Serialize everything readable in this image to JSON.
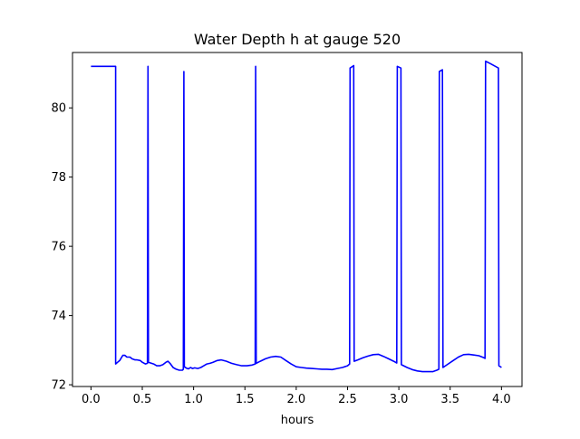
{
  "chart_data": {
    "type": "line",
    "title": "Water Depth h at gauge 520",
    "xlabel": "hours",
    "ylabel": "",
    "xlim": [
      -0.18,
      4.2
    ],
    "ylim": [
      71.95,
      81.6
    ],
    "xticks": [
      0.0,
      0.5,
      1.0,
      1.5,
      2.0,
      2.5,
      3.0,
      3.5,
      4.0
    ],
    "xtick_labels": [
      "0.0",
      "0.5",
      "1.0",
      "1.5",
      "2.0",
      "2.5",
      "3.0",
      "3.5",
      "4.0"
    ],
    "yticks": [
      72,
      74,
      76,
      78,
      80
    ],
    "ytick_labels": [
      "72",
      "74",
      "76",
      "78",
      "80"
    ],
    "grid": false,
    "legend": "none",
    "series": [
      {
        "color": "#0000ff",
        "x": [
          0.0,
          0.24,
          0.24,
          0.26,
          0.28,
          0.31,
          0.33,
          0.35,
          0.38,
          0.4,
          0.43,
          0.45,
          0.48,
          0.5,
          0.53,
          0.55,
          0.556,
          0.56,
          0.58,
          0.61,
          0.64,
          0.67,
          0.7,
          0.73,
          0.75,
          0.77,
          0.8,
          0.83,
          0.86,
          0.89,
          0.9,
          0.905,
          0.91,
          0.93,
          0.95,
          0.97,
          0.99,
          1.01,
          1.04,
          1.07,
          1.1,
          1.13,
          1.16,
          1.19,
          1.23,
          1.27,
          1.32,
          1.37,
          1.42,
          1.47,
          1.52,
          1.57,
          1.6,
          1.605,
          1.61,
          1.65,
          1.7,
          1.75,
          1.8,
          1.85,
          1.9,
          1.95,
          2.0,
          2.05,
          2.1,
          2.15,
          2.2,
          2.25,
          2.3,
          2.35,
          2.4,
          2.45,
          2.5,
          2.52,
          2.525,
          2.56,
          2.565,
          2.6,
          2.65,
          2.7,
          2.75,
          2.8,
          2.85,
          2.9,
          2.95,
          2.98,
          2.985,
          3.02,
          3.025,
          3.08,
          3.13,
          3.18,
          3.23,
          3.28,
          3.33,
          3.37,
          3.39,
          3.395,
          3.425,
          3.43,
          3.48,
          3.53,
          3.58,
          3.63,
          3.68,
          3.73,
          3.78,
          3.83,
          3.84,
          3.845,
          3.89,
          3.94,
          3.97,
          3.975,
          4.0
        ],
        "y": [
          81.2,
          81.2,
          72.6,
          72.65,
          72.7,
          72.85,
          72.85,
          72.8,
          72.8,
          72.75,
          72.72,
          72.72,
          72.7,
          72.65,
          72.6,
          72.62,
          81.2,
          72.65,
          72.63,
          72.6,
          72.55,
          72.55,
          72.58,
          72.65,
          72.68,
          72.62,
          72.5,
          72.45,
          72.42,
          72.42,
          72.45,
          81.05,
          72.52,
          72.48,
          72.46,
          72.5,
          72.47,
          72.49,
          72.47,
          72.5,
          72.55,
          72.6,
          72.62,
          72.65,
          72.7,
          72.72,
          72.68,
          72.62,
          72.58,
          72.55,
          72.55,
          72.57,
          72.6,
          81.2,
          72.62,
          72.68,
          72.75,
          72.8,
          72.82,
          72.8,
          72.7,
          72.6,
          72.52,
          72.5,
          72.48,
          72.47,
          72.46,
          72.45,
          72.45,
          72.44,
          72.47,
          72.5,
          72.55,
          72.6,
          81.15,
          81.22,
          72.68,
          72.72,
          72.78,
          72.83,
          72.87,
          72.88,
          72.82,
          72.75,
          72.68,
          72.63,
          81.2,
          81.15,
          72.58,
          72.5,
          72.44,
          72.4,
          72.38,
          72.38,
          72.38,
          72.42,
          72.45,
          81.05,
          81.1,
          72.5,
          72.6,
          72.7,
          72.8,
          72.87,
          72.88,
          72.86,
          72.84,
          72.78,
          72.76,
          81.35,
          81.28,
          81.2,
          81.15,
          72.55,
          72.5
        ]
      }
    ]
  }
}
